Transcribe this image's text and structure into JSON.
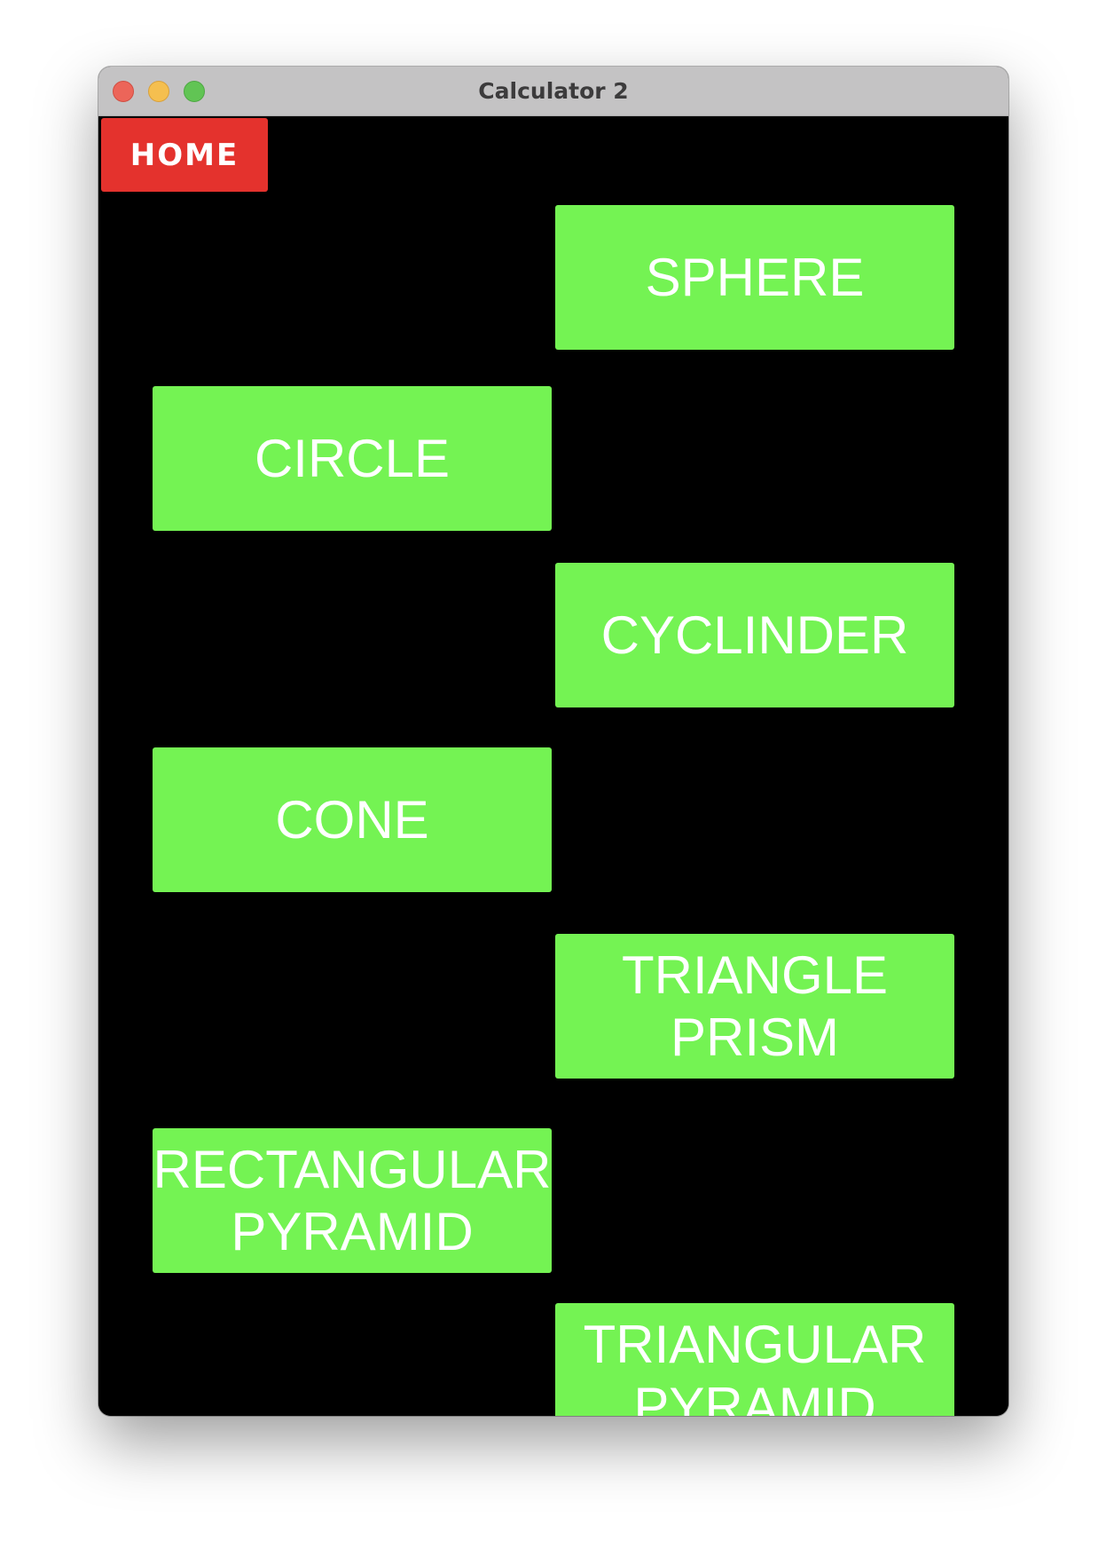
{
  "window": {
    "title": "Calculator 2"
  },
  "home_button": {
    "label": "HOME"
  },
  "shapes": {
    "sphere": {
      "lines": [
        "SPHERE"
      ]
    },
    "circle": {
      "lines": [
        "CIRCLE"
      ]
    },
    "cylinder": {
      "lines": [
        "CYCLINDER"
      ]
    },
    "cone": {
      "lines": [
        "CONE"
      ]
    },
    "triangle_prism": {
      "lines": [
        "TRIANGLE",
        "PRISM"
      ]
    },
    "rectangular_pyramid": {
      "lines": [
        "RECTANGULAR",
        "PYRAMID"
      ]
    },
    "triangular_pyramid": {
      "lines": [
        "TRIANGULAR",
        "PYRAMID"
      ]
    }
  },
  "colors": {
    "home_button": "#e4322d",
    "shape_button": "#74f353",
    "background": "#000000",
    "button_text": "#ffffff"
  }
}
